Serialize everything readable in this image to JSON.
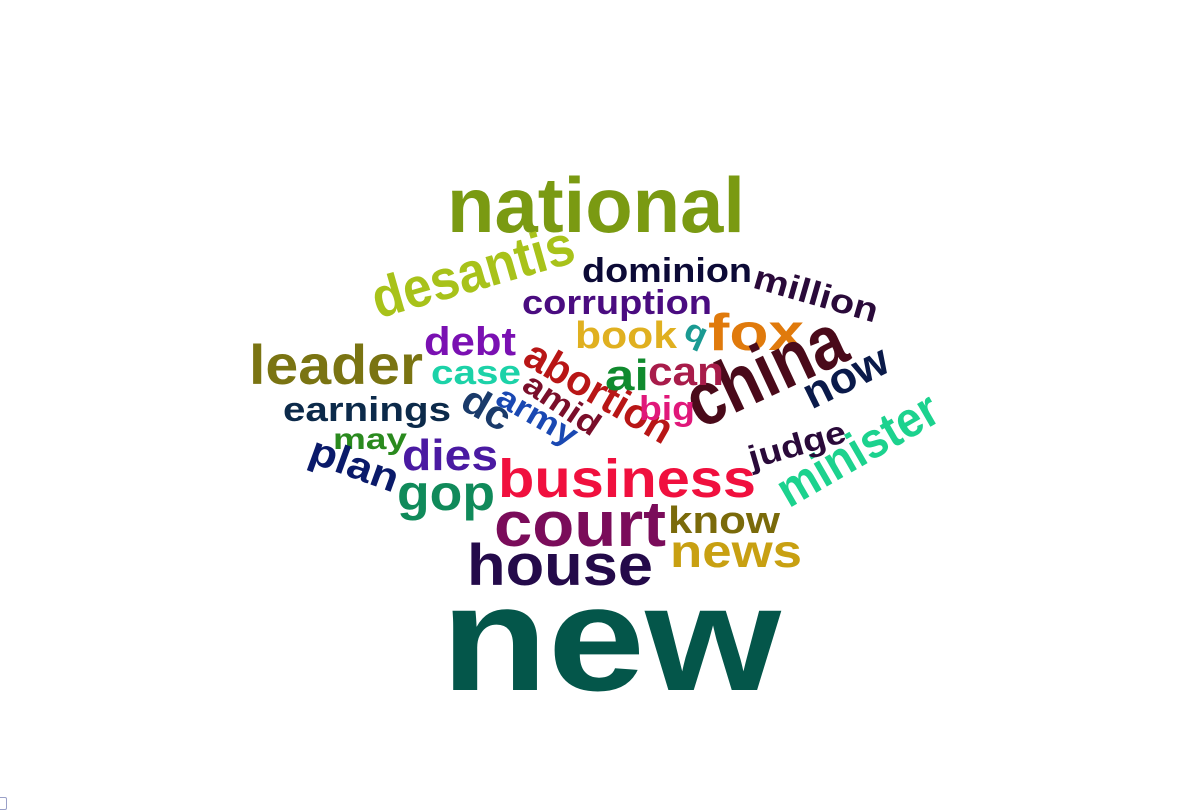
{
  "words": [
    {
      "text": "national",
      "color": "#7a9a12"
    },
    {
      "text": "desantis",
      "color": "#a8c21a"
    },
    {
      "text": "dominion",
      "color": "#0c0a36"
    },
    {
      "text": "million",
      "color": "#2a0a3a"
    },
    {
      "text": "corruption",
      "color": "#4a0c80"
    },
    {
      "text": "fox",
      "color": "#e07a0c"
    },
    {
      "text": "book",
      "color": "#e0b020"
    },
    {
      "text": "q",
      "color": "#1a9a92"
    },
    {
      "text": "debt",
      "color": "#7a10b2"
    },
    {
      "text": "leader",
      "color": "#7a7412"
    },
    {
      "text": "china",
      "color": "#4a0a1a"
    },
    {
      "text": "abortion",
      "color": "#b81616"
    },
    {
      "text": "case",
      "color": "#1cd2a8"
    },
    {
      "text": "ai",
      "color": "#108a2e"
    },
    {
      "text": "can",
      "color": "#a81c4a"
    },
    {
      "text": "now",
      "color": "#0a1a4a"
    },
    {
      "text": "amid",
      "color": "#7a0e2a"
    },
    {
      "text": "earnings",
      "color": "#0c2a4a"
    },
    {
      "text": "dc",
      "color": "#1a3a6a"
    },
    {
      "text": "army",
      "color": "#1a48b2"
    },
    {
      "text": "big",
      "color": "#e0187a"
    },
    {
      "text": "minister",
      "color": "#1cd28e"
    },
    {
      "text": "may",
      "color": "#2a8a1e"
    },
    {
      "text": "judge",
      "color": "#2a0a3a"
    },
    {
      "text": "dies",
      "color": "#4a1aa2"
    },
    {
      "text": "plan",
      "color": "#0a1a6a"
    },
    {
      "text": "gop",
      "color": "#108a5a"
    },
    {
      "text": "business",
      "color": "#f0103e"
    },
    {
      "text": "know",
      "color": "#7a6a0a"
    },
    {
      "text": "court",
      "color": "#7a0c5a"
    },
    {
      "text": "news",
      "color": "#c8a012"
    },
    {
      "text": "house",
      "color": "#240a4a"
    },
    {
      "text": "new",
      "color": "#04564a"
    }
  ]
}
